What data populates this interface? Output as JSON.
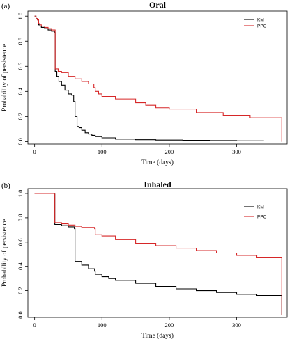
{
  "colors": {
    "km": "#000000",
    "ppc": "#d62728",
    "axis": "#000000",
    "background": "#ffffff"
  },
  "chart_data": [
    {
      "type": "line",
      "panel_label": "(a)",
      "title": "Oral",
      "xlabel": "Time (days)",
      "ylabel": "Probability of persistence",
      "xlim": [
        -10,
        375
      ],
      "ylim": [
        -0.02,
        1.04
      ],
      "x_ticks": [
        0,
        100,
        200,
        300
      ],
      "y_ticks": [
        0.0,
        0.2,
        0.4,
        0.6,
        0.8,
        1.0
      ],
      "x_tick_labels": [
        "0",
        "100",
        "200",
        "300"
      ],
      "y_tick_labels": [
        "0.0",
        "0.2",
        "0.4",
        "0.6",
        "0.8",
        "1.0"
      ],
      "legend": {
        "placement": "top-right",
        "entries": [
          "KM",
          "PPC"
        ]
      },
      "grid": false,
      "series": [
        {
          "name": "KM",
          "color": "#000000",
          "step": true,
          "x": [
            0,
            2,
            4,
            6,
            8,
            10,
            15,
            20,
            25,
            30,
            30.5,
            33,
            36,
            40,
            45,
            50,
            55,
            58,
            60,
            63,
            66,
            70,
            75,
            80,
            85,
            90,
            100,
            120,
            150,
            180,
            220,
            260,
            300,
            340,
            367,
            367
          ],
          "y": [
            1.0,
            0.98,
            0.97,
            0.93,
            0.92,
            0.91,
            0.9,
            0.89,
            0.88,
            0.87,
            0.56,
            0.52,
            0.48,
            0.45,
            0.41,
            0.38,
            0.37,
            0.32,
            0.2,
            0.12,
            0.11,
            0.09,
            0.07,
            0.06,
            0.05,
            0.04,
            0.03,
            0.02,
            0.015,
            0.012,
            0.01,
            0.008,
            0.006,
            0.005,
            0.004,
            0.0
          ]
        },
        {
          "name": "PPC",
          "color": "#d62728",
          "step": true,
          "x": [
            0,
            2,
            4,
            6,
            8,
            10,
            15,
            20,
            25,
            30,
            30.5,
            35,
            40,
            50,
            60,
            70,
            80,
            88,
            90,
            95,
            100,
            120,
            150,
            165,
            180,
            200,
            240,
            280,
            320,
            367,
            367
          ],
          "y": [
            1.0,
            0.98,
            0.97,
            0.94,
            0.93,
            0.92,
            0.91,
            0.9,
            0.89,
            0.89,
            0.58,
            0.56,
            0.55,
            0.52,
            0.5,
            0.48,
            0.46,
            0.43,
            0.4,
            0.38,
            0.36,
            0.34,
            0.31,
            0.29,
            0.27,
            0.26,
            0.23,
            0.21,
            0.19,
            0.165,
            0.0
          ]
        }
      ]
    },
    {
      "type": "line",
      "panel_label": "(b)",
      "title": "Inhaled",
      "xlabel": "Time (days)",
      "ylabel": "Probability of persistence",
      "xlim": [
        -10,
        375
      ],
      "ylim": [
        -0.02,
        1.04
      ],
      "x_ticks": [
        0,
        100,
        200,
        300
      ],
      "y_ticks": [
        0.0,
        0.2,
        0.4,
        0.6,
        0.8,
        1.0
      ],
      "x_tick_labels": [
        "0",
        "100",
        "200",
        "300"
      ],
      "y_tick_labels": [
        "0.0",
        "0.2",
        "0.4",
        "0.6",
        "0.8",
        "1.0"
      ],
      "legend": {
        "placement": "top-right",
        "entries": [
          "KM",
          "PPC"
        ]
      },
      "grid": false,
      "series": [
        {
          "name": "KM",
          "color": "#000000",
          "step": true,
          "x": [
            0,
            29,
            30,
            40,
            50,
            59,
            60,
            70,
            80,
            89,
            90,
            100,
            110,
            120,
            150,
            180,
            210,
            240,
            270,
            300,
            330,
            367,
            367
          ],
          "y": [
            1.0,
            0.995,
            0.745,
            0.735,
            0.725,
            0.71,
            0.44,
            0.41,
            0.38,
            0.36,
            0.335,
            0.315,
            0.3,
            0.285,
            0.26,
            0.235,
            0.215,
            0.2,
            0.185,
            0.17,
            0.16,
            0.15,
            0.0
          ]
        },
        {
          "name": "PPC",
          "color": "#d62728",
          "step": true,
          "x": [
            0,
            29,
            30,
            40,
            50,
            60,
            70,
            89,
            90,
            100,
            120,
            150,
            180,
            210,
            240,
            270,
            300,
            330,
            367,
            367
          ],
          "y": [
            1.0,
            0.995,
            0.76,
            0.75,
            0.74,
            0.73,
            0.72,
            0.71,
            0.66,
            0.65,
            0.62,
            0.59,
            0.57,
            0.55,
            0.53,
            0.51,
            0.49,
            0.475,
            0.46,
            0.0
          ]
        }
      ]
    }
  ]
}
